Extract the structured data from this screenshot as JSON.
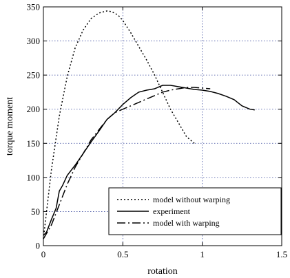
{
  "chart_data": {
    "type": "line",
    "xlabel": "rotation",
    "ylabel": "torque moment",
    "xlim": [
      0,
      1.5
    ],
    "ylim": [
      0,
      350
    ],
    "xticks": [
      0,
      0.5,
      1,
      1.5
    ],
    "xtick_labels": [
      "0",
      "0.5",
      "1",
      "1.5"
    ],
    "yticks": [
      0,
      50,
      100,
      150,
      200,
      250,
      300,
      350
    ],
    "ytick_labels": [
      "0",
      "50",
      "100",
      "150",
      "200",
      "250",
      "300",
      "350"
    ],
    "grid": true,
    "legend_position": "bottom-right",
    "series": [
      {
        "name": "model without warping",
        "style": "dotted",
        "x": [
          0,
          0.05,
          0.1,
          0.15,
          0.2,
          0.25,
          0.3,
          0.35,
          0.4,
          0.43,
          0.47,
          0.5,
          0.55,
          0.6,
          0.65,
          0.7,
          0.75,
          0.8,
          0.85,
          0.9,
          0.95
        ],
        "y": [
          10,
          110,
          190,
          248,
          290,
          316,
          333,
          341,
          344,
          343,
          338,
          330,
          312,
          292,
          272,
          250,
          225,
          200,
          180,
          160,
          150
        ]
      },
      {
        "name": "experiment",
        "style": "solid",
        "x": [
          0,
          0.02,
          0.05,
          0.08,
          0.1,
          0.12,
          0.15,
          0.2,
          0.25,
          0.3,
          0.35,
          0.4,
          0.45,
          0.5,
          0.55,
          0.6,
          0.65,
          0.7,
          0.75,
          0.8,
          0.85,
          0.9,
          0.95,
          1.0,
          1.05,
          1.1,
          1.15,
          1.2,
          1.25,
          1.3,
          1.33
        ],
        "y": [
          15,
          20,
          38,
          55,
          80,
          88,
          103,
          118,
          135,
          152,
          168,
          185,
          195,
          207,
          217,
          225,
          228,
          230,
          235,
          235,
          233,
          231,
          229,
          228,
          226,
          223,
          219,
          214,
          205,
          200,
          199
        ]
      },
      {
        "name": "model with warping",
        "style": "dash-dot",
        "x": [
          0,
          0.05,
          0.1,
          0.15,
          0.2,
          0.25,
          0.3,
          0.35,
          0.4,
          0.45,
          0.5,
          0.55,
          0.6,
          0.65,
          0.7,
          0.75,
          0.8,
          0.85,
          0.9,
          0.95,
          1.0,
          1.05
        ],
        "y": [
          10,
          30,
          60,
          90,
          115,
          135,
          155,
          170,
          185,
          195,
          200,
          205,
          210,
          215,
          220,
          225,
          228,
          230,
          232,
          232,
          231,
          230
        ]
      }
    ]
  }
}
